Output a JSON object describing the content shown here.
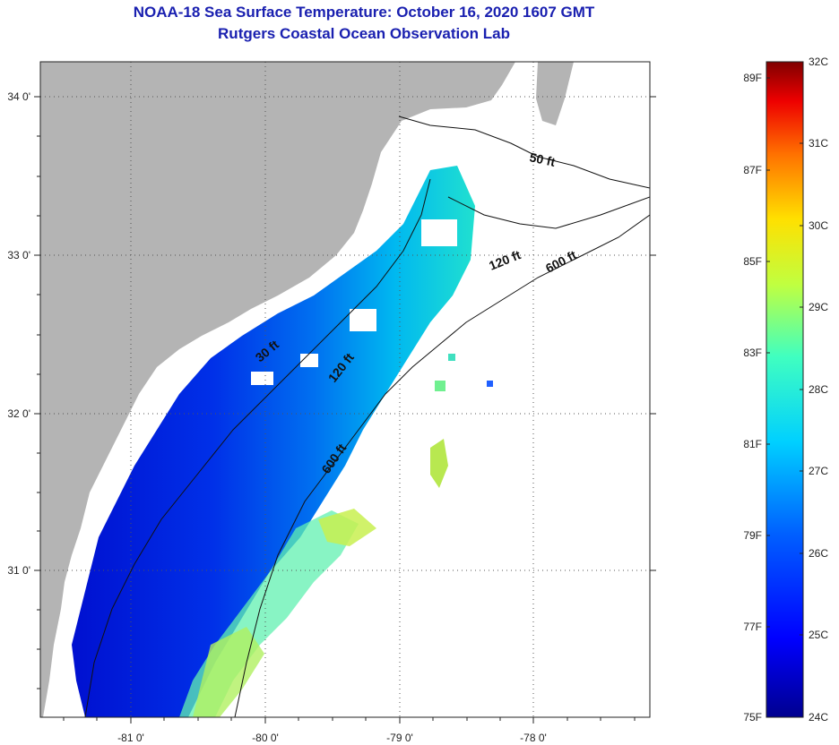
{
  "title": "NOAA-18 Sea Surface Temperature:  October 16, 2020 1607 GMT",
  "subtitle": "Rutgers Coastal Ocean Observation Lab",
  "map": {
    "lat_labels": [
      "34 0'",
      "33 0'",
      "32 0'",
      "31 0'"
    ],
    "lon_labels": [
      "-81 0'",
      "-80 0'",
      "-79 0'",
      "-78 0'"
    ],
    "contours": [
      {
        "label": "50 ft"
      },
      {
        "label": "120 ft"
      },
      {
        "label": "600 ft"
      },
      {
        "label": "30 ft"
      },
      {
        "label": "120 ft"
      },
      {
        "label": "600 ft"
      }
    ],
    "colors": {
      "land": "#b4b4b4",
      "cloud": "#ffffff",
      "grid": "#555555"
    }
  },
  "colorbar": {
    "fahrenheit_labels": [
      "89F",
      "87F",
      "85F",
      "83F",
      "81F",
      "79F",
      "77F",
      "75F"
    ],
    "celsius_labels": [
      "32C",
      "31C",
      "30C",
      "29C",
      "28C",
      "27C",
      "26C",
      "25C",
      "24C"
    ],
    "range_celsius": [
      24,
      32
    ]
  }
}
